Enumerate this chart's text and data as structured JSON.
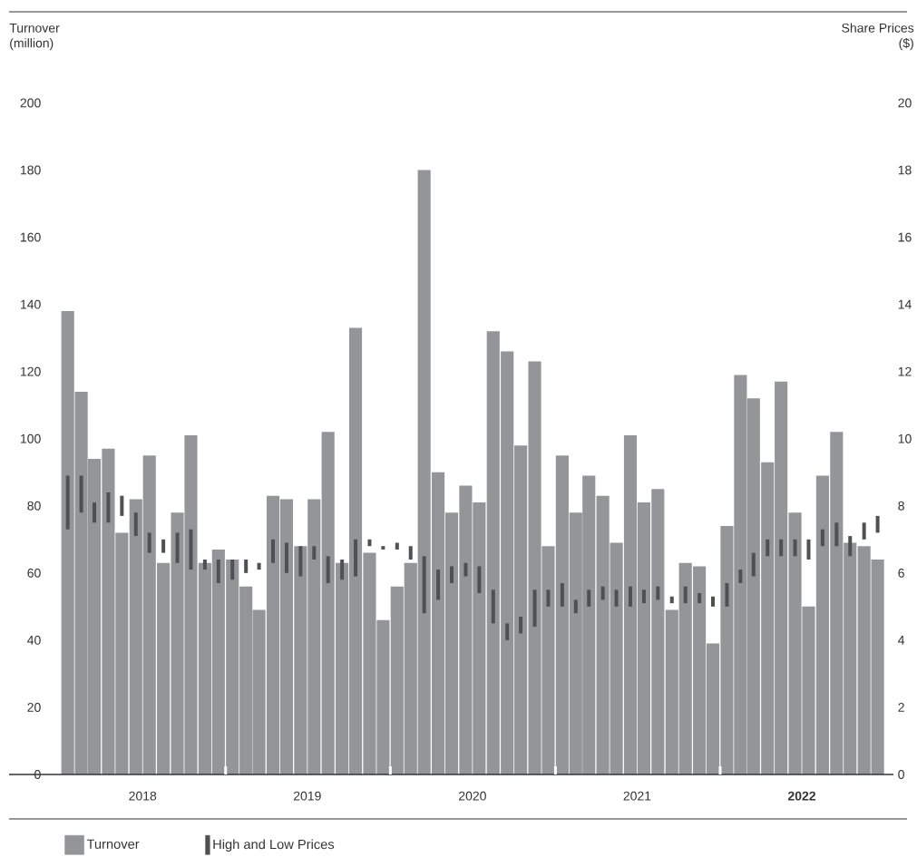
{
  "chart_data": {
    "type": "bar",
    "ylabel": "Turnover (million)",
    "y2label": "Share Prices ($)",
    "x": [
      "2018-01-16",
      "2018-02-15",
      "2018-03-16",
      "2018-04-16",
      "2018-05-16",
      "2018-06-16",
      "2018-07-16",
      "2018-08-16",
      "2018-09-16",
      "2018-10-16",
      "2018-11-16",
      "2018-12-16",
      "2019-01-16",
      "2019-02-15",
      "2019-03-16",
      "2019-04-16",
      "2019-05-16",
      "2019-06-16",
      "2019-07-16",
      "2019-08-16",
      "2019-09-16",
      "2019-10-16",
      "2019-11-16",
      "2019-12-16",
      "2020-01-16",
      "2020-02-15",
      "2020-03-16",
      "2020-04-16",
      "2020-05-16",
      "2020-06-16",
      "2020-07-16",
      "2020-08-16",
      "2020-09-16",
      "2020-10-16",
      "2020-11-16",
      "2020-12-16",
      "2021-01-16",
      "2021-02-15",
      "2021-03-16",
      "2021-04-16",
      "2021-05-16",
      "2021-06-16",
      "2021-07-16",
      "2021-08-16",
      "2021-09-16",
      "2021-10-16",
      "2021-11-16",
      "2021-12-16",
      "2022-01-16",
      "2022-02-15",
      "2022-03-16",
      "2022-04-16",
      "2022-05-16",
      "2022-06-16",
      "2022-07-16",
      "2022-08-16",
      "2022-09-16",
      "2022-10-16",
      "2022-11-16",
      "2022-12-16"
    ],
    "series": [
      {
        "name": "Turnover",
        "color": "#939598",
        "values": [
          138,
          114,
          94,
          97,
          72,
          82,
          95,
          63,
          78,
          101,
          63,
          67,
          64,
          56,
          49,
          83,
          82,
          68,
          82,
          102,
          63,
          133,
          66,
          46,
          56,
          63,
          180,
          90,
          78,
          86,
          81,
          132,
          126,
          98,
          123,
          68,
          95,
          78,
          89,
          83,
          69,
          101,
          81,
          85,
          49,
          63,
          62,
          39,
          74,
          119,
          112,
          93,
          117,
          78,
          50,
          89,
          102,
          69,
          68,
          64
        ]
      },
      {
        "name": "High and Low Prices",
        "axis": "y2",
        "color": "#505052",
        "base": [
          7.3,
          7.8,
          7.5,
          7.5,
          7.7,
          7.1,
          6.6,
          6.6,
          6.3,
          6.1,
          6.1,
          5.7,
          5.8,
          6.0,
          6.1,
          6.3,
          6.0,
          5.9,
          6.4,
          5.7,
          5.8,
          5.9,
          6.8,
          6.7,
          6.7,
          6.4,
          4.8,
          5.2,
          5.7,
          5.9,
          5.4,
          4.5,
          4.0,
          4.2,
          4.4,
          5.0,
          5.0,
          4.8,
          5.0,
          5.2,
          5.0,
          5.0,
          5.1,
          5.2,
          5.1,
          5.1,
          5.1,
          5.0,
          5.0,
          5.7,
          5.9,
          6.5,
          6.5,
          6.5,
          6.4,
          6.8,
          6.8,
          6.5,
          7.0,
          7.2
        ],
        "values": [
          1.6,
          1.1,
          0.6,
          0.9,
          0.6,
          0.7,
          0.6,
          0.4,
          0.9,
          1.2,
          0.3,
          0.7,
          0.6,
          0.4,
          0.2,
          0.7,
          0.9,
          0.9,
          0.4,
          0.8,
          0.6,
          1.1,
          0.2,
          0.1,
          0.2,
          0.4,
          1.7,
          0.9,
          0.5,
          0.4,
          0.8,
          1.0,
          0.5,
          0.5,
          1.1,
          0.5,
          0.7,
          0.4,
          0.5,
          0.4,
          0.5,
          0.6,
          0.4,
          0.4,
          0.2,
          0.5,
          0.3,
          0.3,
          0.7,
          0.4,
          0.7,
          0.5,
          0.5,
          0.5,
          0.6,
          0.5,
          0.7,
          0.6,
          0.5,
          0.5
        ]
      }
    ],
    "xlim": [
      "2017-09-08",
      "2023-01-20"
    ],
    "xticks": [
      {
        "value": "2018-07-01",
        "label": "2018"
      },
      {
        "value": "2019-01-01",
        "label": null
      },
      {
        "value": "2019-07-01",
        "label": "2019"
      },
      {
        "value": "2020-01-01",
        "label": null
      },
      {
        "value": "2020-07-01",
        "label": "2020"
      },
      {
        "value": "2021-01-01",
        "label": null
      },
      {
        "value": "2021-07-01",
        "label": "2021"
      },
      {
        "value": "2022-01-01",
        "label": null
      },
      {
        "value": "2022-07-01",
        "label": "**2022**"
      }
    ],
    "ylim": [
      0,
      200
    ],
    "yticks": [
      0,
      20,
      40,
      60,
      80,
      100,
      120,
      140,
      160,
      180,
      200
    ],
    "y2lim": [
      0,
      20
    ],
    "y2ticks": [
      0,
      2,
      4,
      6,
      8,
      10,
      12,
      14,
      16,
      18,
      20
    ],
    "legend": "bottom left"
  }
}
